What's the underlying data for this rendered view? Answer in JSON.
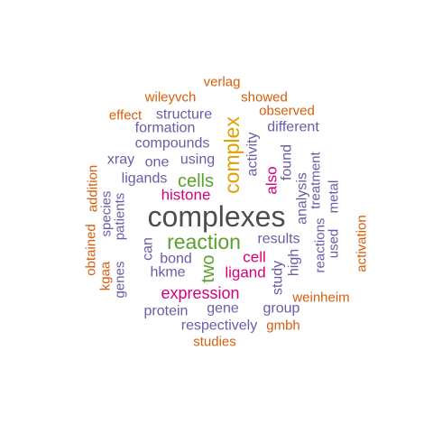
{
  "colors": {
    "gray": "#4d4d4d",
    "purple": "#6b5ca6",
    "orange": "#d45f0e",
    "gold": "#e0a100",
    "green": "#5aa02c",
    "magenta": "#d6007a",
    "background": "#ffffff"
  },
  "words": [
    {
      "text": "complexes",
      "color": "gray"
    },
    {
      "text": "complex",
      "color": "gold"
    },
    {
      "text": "reaction",
      "color": "green"
    },
    {
      "text": "cells",
      "color": "green"
    },
    {
      "text": "two",
      "color": "green"
    },
    {
      "text": "expression",
      "color": "magenta"
    },
    {
      "text": "histone",
      "color": "magenta"
    },
    {
      "text": "ligand",
      "color": "magenta"
    },
    {
      "text": "also",
      "color": "magenta"
    },
    {
      "text": "cell",
      "color": "magenta"
    },
    {
      "text": "verlag",
      "color": "orange"
    },
    {
      "text": "wileyvch",
      "color": "orange"
    },
    {
      "text": "showed",
      "color": "orange"
    },
    {
      "text": "effect",
      "color": "orange"
    },
    {
      "text": "observed",
      "color": "orange"
    },
    {
      "text": "structure",
      "color": "purple"
    },
    {
      "text": "formation",
      "color": "purple"
    },
    {
      "text": "different",
      "color": "purple"
    },
    {
      "text": "compounds",
      "color": "purple"
    },
    {
      "text": "xray",
      "color": "purple"
    },
    {
      "text": "one",
      "color": "purple"
    },
    {
      "text": "using",
      "color": "purple"
    },
    {
      "text": "ligands",
      "color": "purple"
    },
    {
      "text": "activity",
      "color": "purple"
    },
    {
      "text": "found",
      "color": "purple"
    },
    {
      "text": "treatment",
      "color": "purple"
    },
    {
      "text": "addition",
      "color": "orange"
    },
    {
      "text": "obtained",
      "color": "orange"
    },
    {
      "text": "species",
      "color": "purple"
    },
    {
      "text": "patients",
      "color": "purple"
    },
    {
      "text": "analysis",
      "color": "purple"
    },
    {
      "text": "metal",
      "color": "purple"
    },
    {
      "text": "can",
      "color": "purple"
    },
    {
      "text": "results",
      "color": "purple"
    },
    {
      "text": "bond",
      "color": "purple"
    },
    {
      "text": "high",
      "color": "purple"
    },
    {
      "text": "reactions",
      "color": "purple"
    },
    {
      "text": "used",
      "color": "purple"
    },
    {
      "text": "activation",
      "color": "orange"
    },
    {
      "text": "kgaa",
      "color": "orange"
    },
    {
      "text": "genes",
      "color": "purple"
    },
    {
      "text": "hkme",
      "color": "purple"
    },
    {
      "text": "study",
      "color": "purple"
    },
    {
      "text": "weinheim",
      "color": "orange"
    },
    {
      "text": "protein",
      "color": "purple"
    },
    {
      "text": "gene",
      "color": "purple"
    },
    {
      "text": "group",
      "color": "purple"
    },
    {
      "text": "respectively",
      "color": "purple"
    },
    {
      "text": "gmbh",
      "color": "orange"
    },
    {
      "text": "studies",
      "color": "orange"
    }
  ]
}
